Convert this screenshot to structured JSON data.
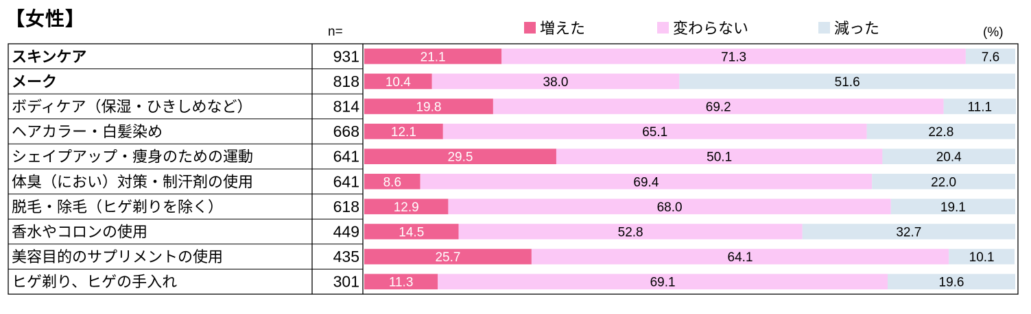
{
  "header": {
    "title": "【女性】",
    "n_label": "n=",
    "unit": "(%)"
  },
  "colors": {
    "increased": "#F06292",
    "unchanged": "#FBC8F6",
    "decreased": "#D9E6F0",
    "increased_text": "#ffffff",
    "other_text": "#000000"
  },
  "legend": [
    {
      "name": "増えた",
      "color_key": "increased"
    },
    {
      "name": "変わらない",
      "color_key": "unchanged"
    },
    {
      "name": "減った",
      "color_key": "decreased"
    }
  ],
  "chart_data": {
    "type": "bar",
    "orientation": "horizontal",
    "stacked": true,
    "percent_stacked": true,
    "categories": [
      "スキンケア",
      "メーク",
      "ボディケア（保湿・ひきしめなど）",
      "ヘアカラー・白髪染め",
      "シェイプアップ・痩身のための運動",
      "体臭（におい）対策・制汗剤の使用",
      "脱毛・除毛（ヒゲ剃りを除く）",
      "香水やコロンの使用",
      "美容目的のサプリメントの使用",
      "ヒゲ剃り、ヒゲの手入れ"
    ],
    "bold_categories": [
      "スキンケア",
      "メーク"
    ],
    "n": [
      931,
      818,
      814,
      668,
      641,
      641,
      618,
      449,
      435,
      301
    ],
    "series": [
      {
        "name": "増えた",
        "values": [
          21.1,
          10.4,
          19.8,
          12.1,
          29.5,
          8.6,
          12.9,
          14.5,
          25.7,
          11.3
        ]
      },
      {
        "name": "変わらない",
        "values": [
          71.3,
          38.0,
          69.2,
          65.1,
          50.1,
          69.4,
          68.0,
          52.8,
          64.1,
          69.1
        ]
      },
      {
        "name": "減った",
        "values": [
          7.6,
          51.6,
          11.1,
          22.8,
          20.4,
          22.0,
          19.1,
          32.7,
          10.1,
          19.6
        ]
      }
    ],
    "xlim": [
      0,
      100
    ],
    "legend_position": "top",
    "grid": false
  }
}
